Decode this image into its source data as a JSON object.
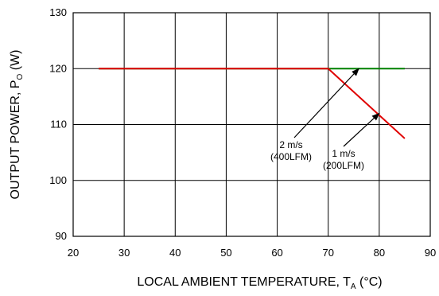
{
  "chart_data": {
    "type": "line",
    "title": "",
    "xlabel": {
      "main": "LOCAL AMBIENT TEMPERATURE, T",
      "sub": "A",
      "unit": " (°C)"
    },
    "ylabel": {
      "main": "OUTPUT POWER, P",
      "sub": "O",
      "unit": " (W)"
    },
    "xlim": [
      20,
      90
    ],
    "ylim": [
      90,
      130
    ],
    "xticks": [
      20,
      30,
      40,
      50,
      60,
      70,
      80,
      90
    ],
    "yticks": [
      90,
      100,
      110,
      120,
      130
    ],
    "grid": true,
    "series": [
      {
        "color": "#008000",
        "x": [
          25,
          70,
          85
        ],
        "y": [
          120,
          120,
          120
        ]
      },
      {
        "color": "#e00000",
        "x": [
          25,
          70,
          85
        ],
        "y": [
          120,
          120,
          107.5
        ]
      }
    ],
    "annotations": [
      {
        "lines": [
          "2 m/s",
          "(400LFM)"
        ],
        "arrow_to": [
          76,
          120
        ]
      },
      {
        "lines": [
          "1 m/s",
          "(200LFM)"
        ],
        "arrow_to": [
          80,
          112
        ]
      }
    ]
  }
}
